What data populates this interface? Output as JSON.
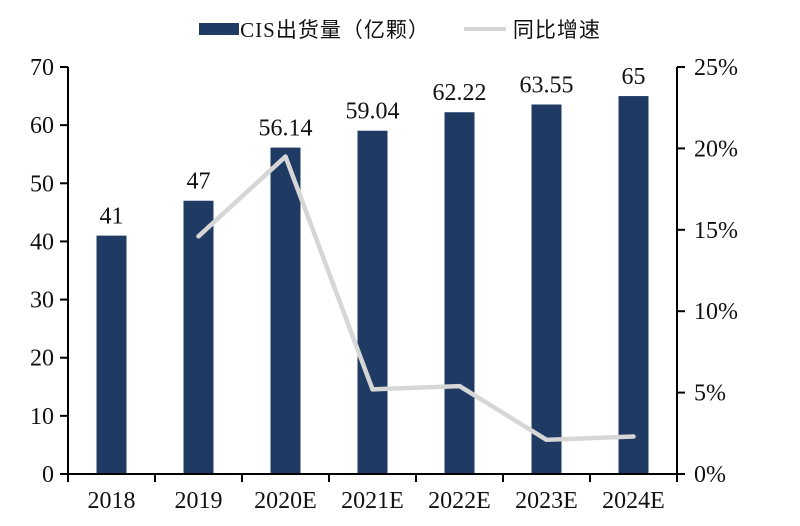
{
  "legend": {
    "bar_label": "CIS出货量（亿颗）",
    "line_label": "同比增速"
  },
  "colors": {
    "bar": "#1F3B63",
    "line": "#D6D6D6",
    "axis": "#000000",
    "text": "#111111"
  },
  "chart_data": {
    "type": "bar",
    "subtype": "bar+line combo",
    "title": "",
    "categories": [
      "2018",
      "2019",
      "2020E",
      "2021E",
      "2022E",
      "2023E",
      "2024E"
    ],
    "series": [
      {
        "name": "CIS出货量（亿颗）",
        "type": "bar",
        "axis": "left",
        "values": [
          41,
          47,
          56.14,
          59.04,
          62.22,
          63.55,
          65
        ],
        "labels": [
          "41",
          "47",
          "56.14",
          "59.04",
          "62.22",
          "63.55",
          "65"
        ]
      },
      {
        "name": "同比增速",
        "type": "line",
        "axis": "right",
        "values": [
          null,
          14.6,
          19.5,
          5.2,
          5.4,
          2.1,
          2.3
        ]
      }
    ],
    "left_axis": {
      "min": 0,
      "max": 70,
      "step": 10,
      "ticks": [
        "0",
        "10",
        "20",
        "30",
        "40",
        "50",
        "60",
        "70"
      ]
    },
    "right_axis": {
      "min": 0,
      "max": 25,
      "step": 5,
      "ticks": [
        "0%",
        "5%",
        "10%",
        "15%",
        "20%",
        "25%"
      ]
    },
    "grid": false,
    "legend_position": "top"
  }
}
